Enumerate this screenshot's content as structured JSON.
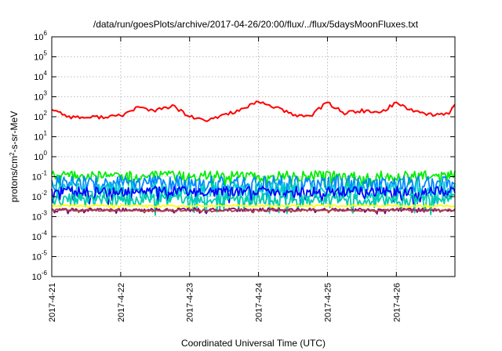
{
  "chart_data": {
    "type": "line",
    "title": "/data/run/goesPlots/archive/2017-04-26/20:00/flux/../flux/5daysMoonFluxes.txt",
    "xlabel": "Coordinated Universal Time (UTC)",
    "ylabel": "protons/cm2-s-sr-MeV",
    "yscale": "log",
    "ylim": [
      1e-06,
      1000000.0
    ],
    "xlim_days": [
      0,
      5.85
    ],
    "grid": true,
    "legend": "none",
    "x_ticks": [
      {
        "day": 0,
        "label": "2017-4-21"
      },
      {
        "day": 1,
        "label": "2017-4-22"
      },
      {
        "day": 2,
        "label": "2017-4-23"
      },
      {
        "day": 3,
        "label": "2017-4-24"
      },
      {
        "day": 4,
        "label": "2017-4-25"
      },
      {
        "day": 5,
        "label": "2017-4-26"
      }
    ],
    "y_ticks": [
      {
        "base": "10",
        "exp": "6"
      },
      {
        "base": "10",
        "exp": "5"
      },
      {
        "base": "10",
        "exp": "4"
      },
      {
        "base": "10",
        "exp": "3"
      },
      {
        "base": "10",
        "exp": "2"
      },
      {
        "base": "10",
        "exp": "1"
      },
      {
        "base": "10",
        "exp": "0"
      },
      {
        "base": "10",
        "exp": "-1"
      },
      {
        "base": "10",
        "exp": "-2"
      },
      {
        "base": "10",
        "exp": "-3"
      },
      {
        "base": "10",
        "exp": "-4"
      },
      {
        "base": "10",
        "exp": "-5"
      },
      {
        "base": "10",
        "exp": "-6"
      }
    ],
    "series": [
      {
        "color": "#ff0000",
        "x": [
          0,
          0.25,
          0.5,
          0.75,
          1.0,
          1.25,
          1.5,
          1.75,
          2.0,
          2.25,
          2.5,
          2.75,
          3.0,
          3.25,
          3.5,
          3.75,
          4.0,
          4.25,
          4.5,
          4.75,
          5.0,
          5.25,
          5.5,
          5.75,
          5.85
        ],
        "y": [
          250,
          100,
          90,
          100,
          110,
          300,
          200,
          350,
          100,
          60,
          130,
          220,
          550,
          300,
          120,
          110,
          520,
          150,
          200,
          150,
          500,
          200,
          130,
          130,
          400
        ]
      },
      {
        "color": "#00ee00",
        "center": 0.11,
        "noise": 0.25
      },
      {
        "color": "#0088ff",
        "center": 0.045,
        "noise": 0.4
      },
      {
        "color": "#00cccc",
        "center": 0.02,
        "noise": 0.45
      },
      {
        "color": "#0000ff",
        "center": 0.018,
        "noise": 0.25
      },
      {
        "color": "#00ccaa",
        "center": 0.007,
        "noise": 0.3
      },
      {
        "color": "#ffff00",
        "center": 0.0035,
        "noise": 0.04
      },
      {
        "color": "#800080",
        "center": 0.0022,
        "noise": 0.08
      },
      {
        "color": "#aa4444",
        "center": 0.0021,
        "noise": 0.05
      }
    ]
  }
}
